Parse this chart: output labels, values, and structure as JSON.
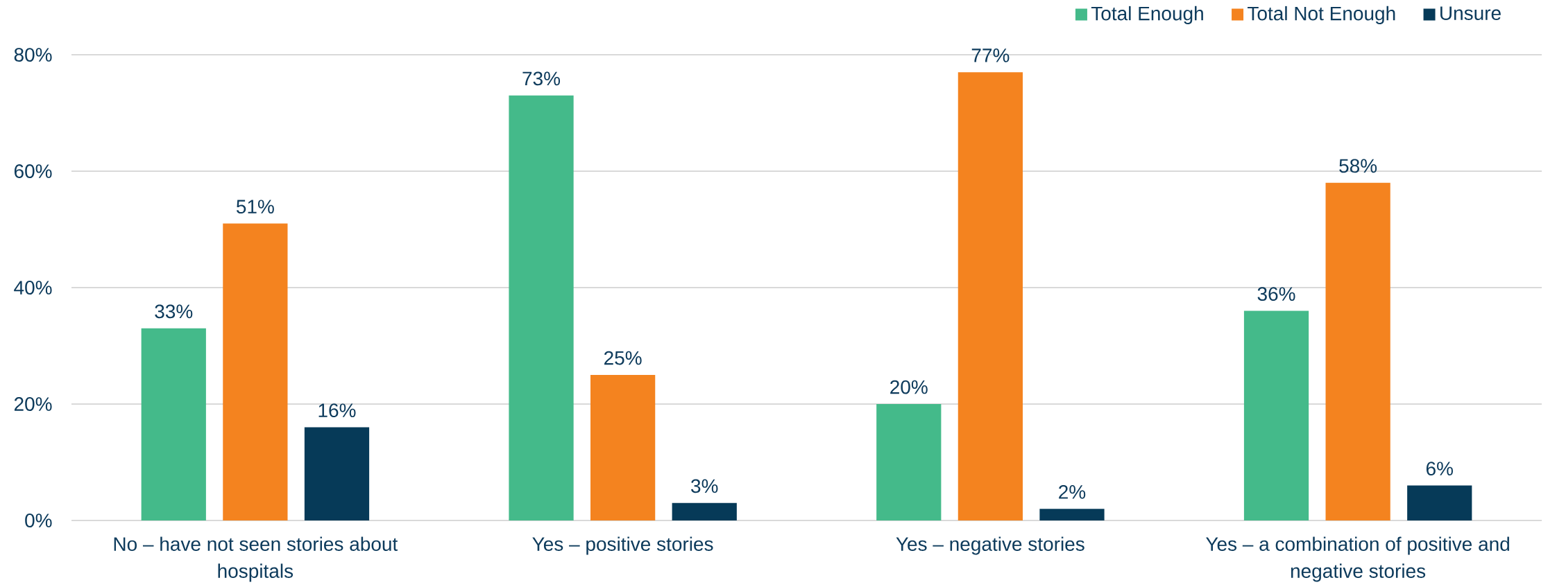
{
  "chart_data": {
    "type": "bar",
    "categories": [
      "No – have not seen stories about hospitals",
      "Yes – positive stories",
      "Yes – negative stories",
      "Yes – a combination of positive and negative stories"
    ],
    "series": [
      {
        "name": "Total Enough",
        "color": "#44ba8a",
        "values": [
          33,
          73,
          20,
          36
        ],
        "value_labels": [
          "33%",
          "73%",
          "20%",
          "36%"
        ]
      },
      {
        "name": "Total Not Enough",
        "color": "#f4831f",
        "values": [
          51,
          25,
          77,
          58
        ],
        "value_labels": [
          "51%",
          "25%",
          "77%",
          "58%"
        ]
      },
      {
        "name": "Unsure",
        "color": "#063a58",
        "values": [
          16,
          3,
          2,
          6
        ],
        "value_labels": [
          "16%",
          "3%",
          "2%",
          "6%"
        ]
      }
    ],
    "ylim": [
      0,
      80
    ],
    "yticks": [
      {
        "value": 0,
        "label": "0%"
      },
      {
        "value": 20,
        "label": "20%"
      },
      {
        "value": 40,
        "label": "40%"
      },
      {
        "value": 60,
        "label": "60%"
      },
      {
        "value": 80,
        "label": "80%"
      }
    ],
    "grid": "y",
    "legend": "top right"
  }
}
